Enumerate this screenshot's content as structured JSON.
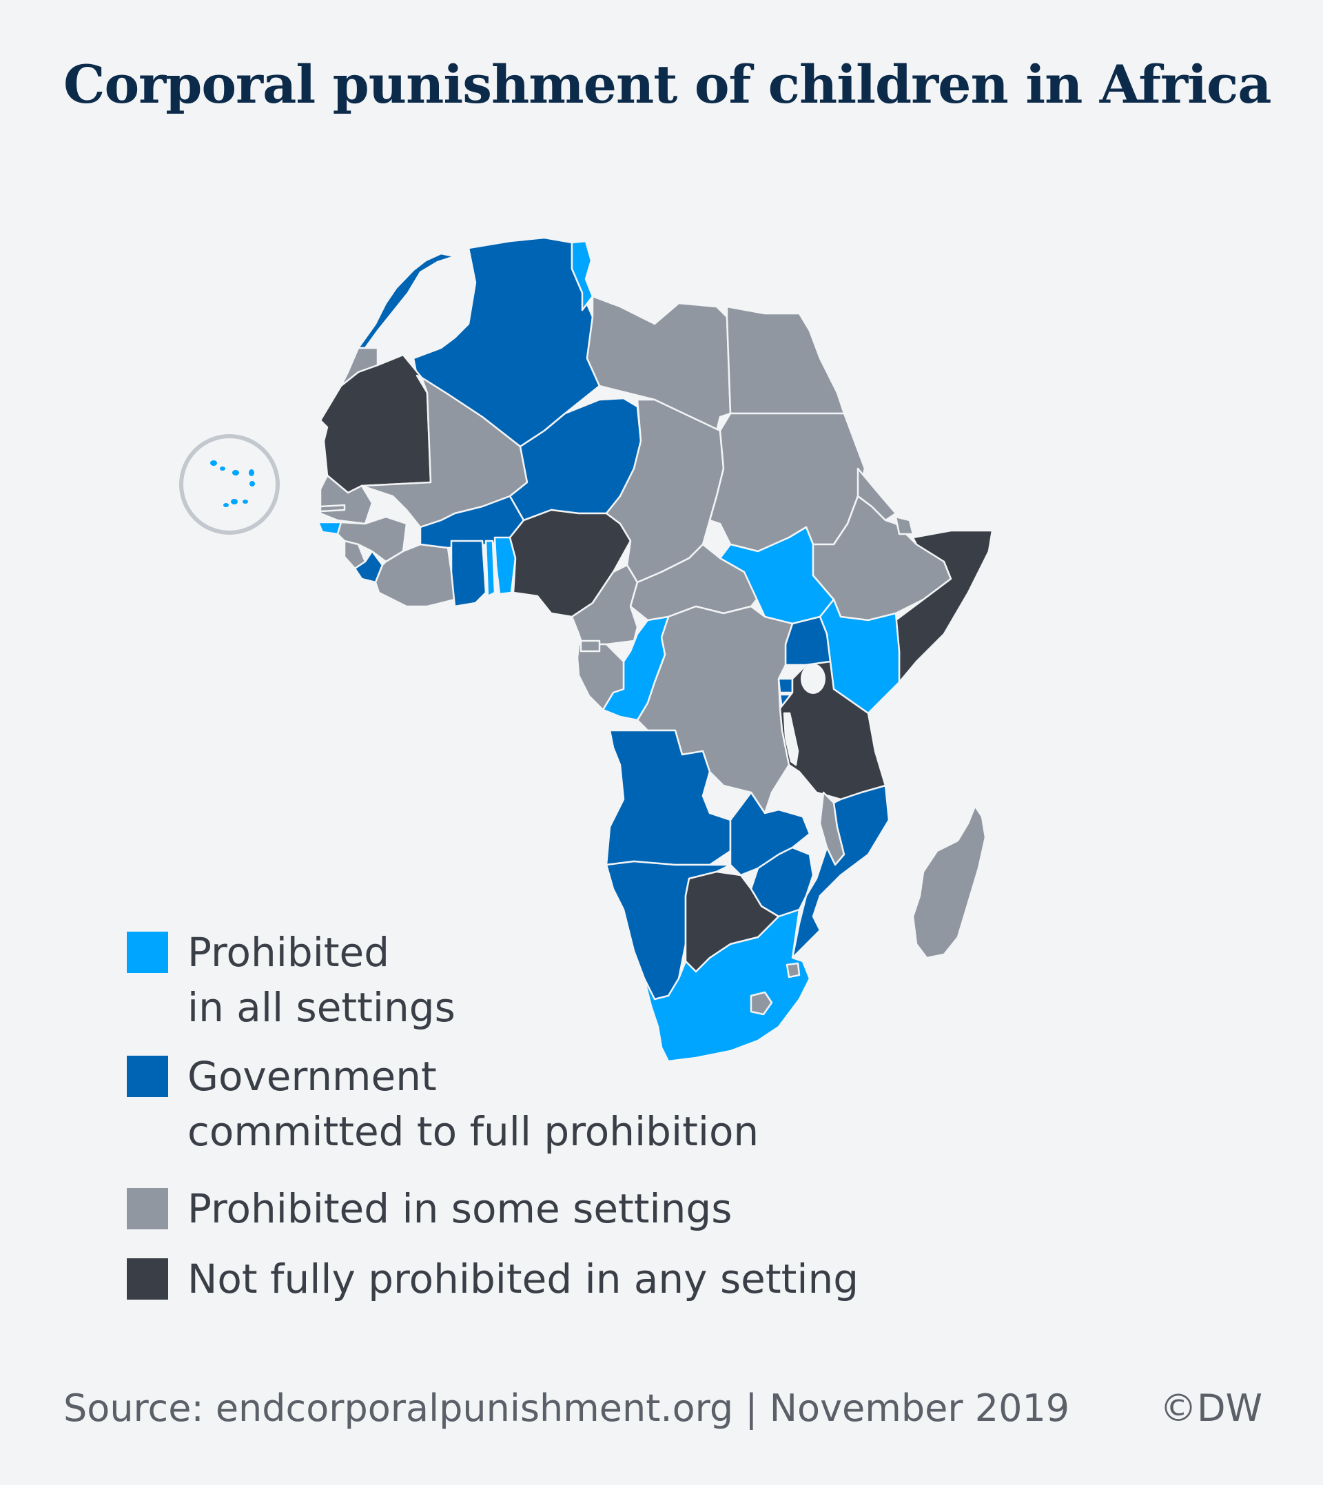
{
  "title": "Corporal punishment of children in Africa",
  "colors": {
    "prohibited_all": "#00a5ff",
    "gov_committed": "#0064b4",
    "prohibited_some": "#9097a0",
    "not_prohibited": "#3a3f47",
    "background": "#f2f4f6"
  },
  "legend": [
    {
      "line1": "Prohibited",
      "line2": "in all settings",
      "color": "#00a5ff"
    },
    {
      "line1": "Government",
      "line2": "committed to full prohibition",
      "color": "#0064b4"
    },
    {
      "line1": "Prohibited in some settings",
      "line2": "",
      "color": "#9097a0"
    },
    {
      "line1": "Not fully prohibited in any setting",
      "line2": "",
      "color": "#3a3f47"
    }
  ],
  "footer": {
    "source": "Source: endcorporalpunishment.org | November 2019",
    "copyright": "©DW"
  }
}
